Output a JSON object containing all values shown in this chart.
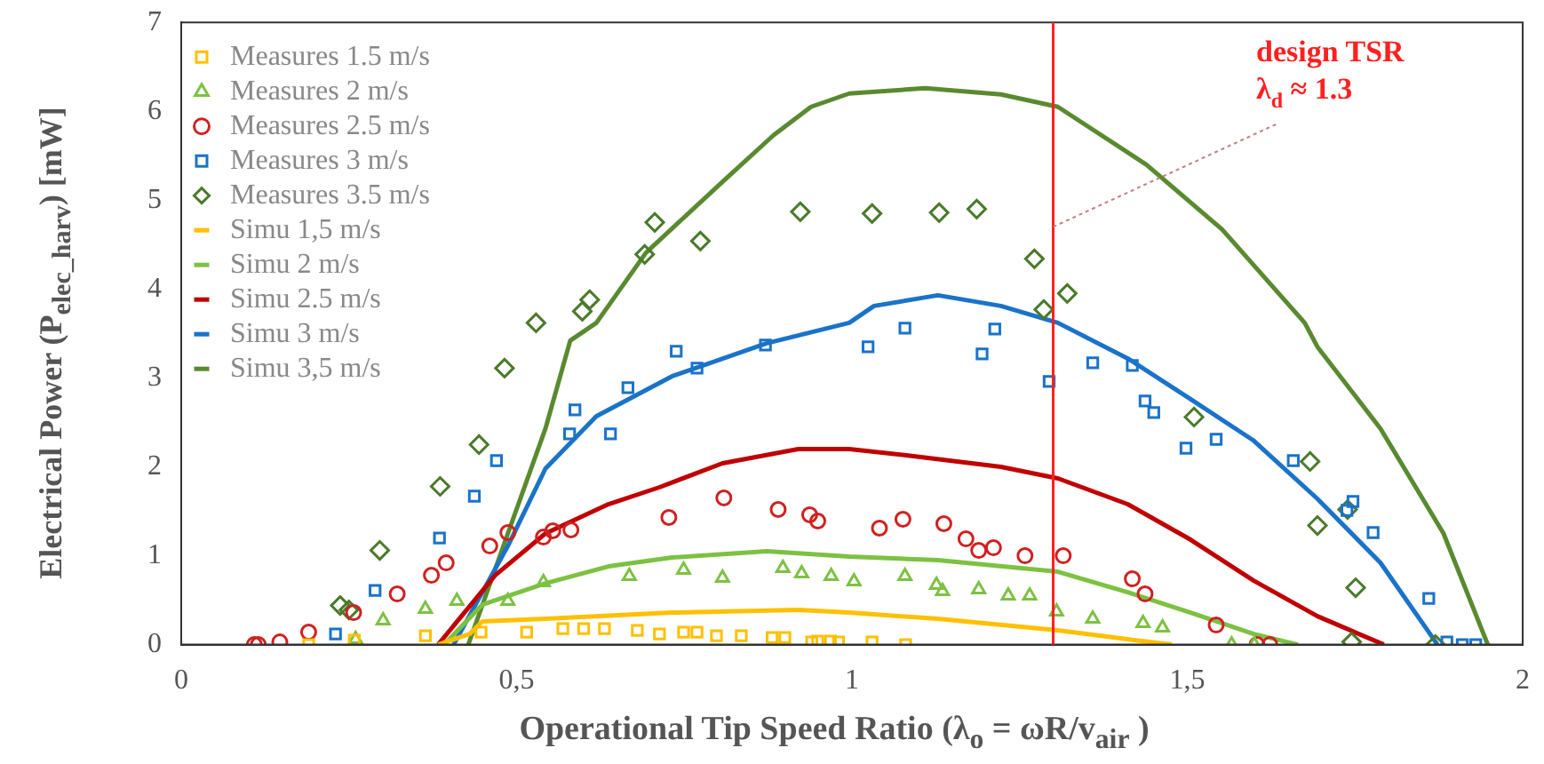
{
  "chart_data": {
    "type": "scatter",
    "xlabel": "Operational Tip Speed Ratio (λ$_{o}$ = ωR/v$_{air}$ )",
    "ylabel": "Electrical Power (P$_{elec_harv}$) [mW]",
    "xlim": [
      0,
      2
    ],
    "xticks": [
      0,
      {
        "value": 0.5,
        "label": "0,5"
      },
      1,
      {
        "value": 1.5,
        "label": "1,5"
      },
      2
    ],
    "ylim": [
      0,
      7
    ],
    "yticks": [
      0,
      1,
      2,
      3,
      4,
      5,
      6,
      7
    ],
    "grid": false,
    "legend": "top left",
    "ref_lines": [
      {
        "axis": "x",
        "value": 1.3,
        "color": "#ff2020"
      }
    ],
    "annotations": [
      {
        "text": "design TSR\nλ$_{d}$ ≈ 1.3",
        "x": 1.3,
        "y": 4.7
      }
    ],
    "series": [
      {
        "name": "Measures 1.5 m/s",
        "type": "scatter",
        "marker": "square",
        "color": "#ffc000",
        "x": [
          0.19,
          0.258,
          0.364,
          0.447,
          0.515,
          0.569,
          0.6,
          0.631,
          0.68,
          0.713,
          0.749,
          0.769,
          0.798,
          0.835,
          0.881,
          0.9,
          0.949,
          0.968,
          0.94,
          0.98,
          1.03,
          1.08
        ],
        "values": [
          0,
          0.05,
          0.1,
          0.14,
          0.14,
          0.18,
          0.18,
          0.18,
          0.16,
          0.12,
          0.14,
          0.14,
          0.1,
          0.1,
          0.08,
          0.08,
          0.04,
          0.04,
          0.03,
          0.03,
          0.03,
          0
        ]
      },
      {
        "name": "Measures 2 m/s",
        "type": "scatter",
        "marker": "triangle",
        "color": "#7dc142",
        "x": [
          0.26,
          0.301,
          0.364,
          0.411,
          0.487,
          0.54,
          0.668,
          0.749,
          0.807,
          0.897,
          0.925,
          0.969,
          1.003,
          1.079,
          1.126,
          1.135,
          1.189,
          1.233,
          1.265,
          1.305,
          1.359,
          1.434,
          1.463,
          1.566,
          1.6
        ],
        "values": [
          0.06,
          0.27,
          0.4,
          0.49,
          0.49,
          0.7,
          0.77,
          0.84,
          0.75,
          0.86,
          0.8,
          0.77,
          0.71,
          0.77,
          0.67,
          0.6,
          0.62,
          0.55,
          0.55,
          0.37,
          0.29,
          0.24,
          0.19,
          0,
          0
        ]
      },
      {
        "name": "Measures 2.5 m/s",
        "type": "scatter",
        "marker": "circle",
        "color": "#d02020",
        "x": [
          0.109,
          0.115,
          0.147,
          0.19,
          0.257,
          0.322,
          0.373,
          0.395,
          0.46,
          0.487,
          0.54,
          0.554,
          0.581,
          0.727,
          0.809,
          0.89,
          0.937,
          0.949,
          1.041,
          1.076,
          1.137,
          1.17,
          1.189,
          1.211,
          1.258,
          1.315,
          1.418,
          1.437,
          1.543,
          1.604,
          1.623
        ],
        "values": [
          0,
          0,
          0.03,
          0.14,
          0.36,
          0.57,
          0.78,
          0.92,
          1.11,
          1.26,
          1.21,
          1.28,
          1.29,
          1.43,
          1.65,
          1.52,
          1.46,
          1.39,
          1.31,
          1.41,
          1.36,
          1.19,
          1.06,
          1.09,
          1,
          1,
          0.74,
          0.57,
          0.22,
          0,
          0
        ]
      },
      {
        "name": "Measures 3 m/s",
        "type": "scatter",
        "marker": "square",
        "color": "#1a73c8",
        "x": [
          0.23,
          0.289,
          0.385,
          0.437,
          0.47,
          0.579,
          0.587,
          0.64,
          0.666,
          0.738,
          0.769,
          0.871,
          1.024,
          1.079,
          1.194,
          1.213,
          1.294,
          1.359,
          1.418,
          1.437,
          1.45,
          1.498,
          1.543,
          1.658,
          1.738,
          1.747,
          1.777,
          1.86,
          1.887,
          1.91,
          1.93
        ],
        "values": [
          0.12,
          0.61,
          1.2,
          1.67,
          2.07,
          2.37,
          2.64,
          2.37,
          2.89,
          3.3,
          3.11,
          3.37,
          3.35,
          3.56,
          3.27,
          3.55,
          2.96,
          3.17,
          3.14,
          2.74,
          2.61,
          2.21,
          2.31,
          2.07,
          1.51,
          1.61,
          1.26,
          0.52,
          0.03,
          0,
          0
        ]
      },
      {
        "name": "Measures 3.5 m/s",
        "type": "scatter",
        "marker": "diamond",
        "color": "#4a7a2a",
        "x": [
          0.237,
          0.25,
          0.296,
          0.386,
          0.444,
          0.482,
          0.529,
          0.598,
          0.609,
          0.691,
          0.706,
          0.774,
          0.923,
          1.03,
          1.13,
          1.186,
          1.272,
          1.286,
          1.321,
          1.51,
          1.683,
          1.694,
          1.739,
          1.751,
          1.745,
          1.87
        ],
        "values": [
          0.44,
          0.39,
          1.06,
          1.78,
          2.25,
          3.11,
          3.62,
          3.75,
          3.88,
          4.39,
          4.75,
          4.54,
          4.87,
          4.85,
          4.86,
          4.9,
          4.34,
          3.77,
          3.95,
          2.56,
          2.06,
          1.34,
          1.52,
          0.64,
          0.03,
          0
        ]
      },
      {
        "name": "Simu 1,5 m/s",
        "type": "line",
        "marker": "none",
        "color": "#ffc000",
        "x": [
          0.383,
          0.43,
          0.449,
          0.543,
          0.732,
          0.92,
          0.996,
          1.128,
          1.307,
          1.411,
          1.477
        ],
        "values": [
          0,
          0.12,
          0.26,
          0.29,
          0.36,
          0.39,
          0.36,
          0.29,
          0.16,
          0.06,
          0
        ]
      },
      {
        "name": "Simu 2 m/s",
        "type": "line",
        "marker": "none",
        "color": "#7dc142",
        "x": [
          0.392,
          0.449,
          0.543,
          0.637,
          0.732,
          0.873,
          0.996,
          1.128,
          1.307,
          1.411,
          1.505,
          1.599,
          1.665
        ],
        "values": [
          0,
          0.45,
          0.69,
          0.88,
          0.98,
          1.05,
          0.99,
          0.95,
          0.82,
          0.59,
          0.36,
          0.12,
          0
        ]
      },
      {
        "name": "Simu 2.5 m/s",
        "type": "line",
        "marker": "none",
        "color": "#c00000",
        "x": [
          0.383,
          0.468,
          0.543,
          0.637,
          0.713,
          0.807,
          0.92,
          0.996,
          1.081,
          1.222,
          1.307,
          1.411,
          1.505,
          1.599,
          1.694,
          1.793
        ],
        "values": [
          0,
          0.78,
          1.25,
          1.58,
          1.77,
          2.04,
          2.2,
          2.2,
          2.13,
          2,
          1.87,
          1.58,
          1.18,
          0.72,
          0.32,
          0
        ]
      },
      {
        "name": "Simu 3 m/s",
        "type": "line",
        "marker": "none",
        "color": "#1a73c8",
        "x": [
          0.406,
          0.487,
          0.543,
          0.619,
          0.732,
          0.873,
          0.996,
          1.033,
          1.128,
          1.222,
          1.307,
          1.411,
          1.505,
          1.598,
          1.694,
          1.788,
          1.873
        ],
        "values": [
          0,
          1.11,
          1.98,
          2.57,
          3.02,
          3.39,
          3.62,
          3.81,
          3.93,
          3.81,
          3.62,
          3.22,
          2.76,
          2.3,
          1.64,
          0.92,
          0
        ]
      },
      {
        "name": "Simu 3,5 m/s",
        "type": "line",
        "marker": "none",
        "color": "#5a8a30",
        "x": [
          0.428,
          0.487,
          0.543,
          0.58,
          0.619,
          0.693,
          0.806,
          0.883,
          0.939,
          0.996,
          1.109,
          1.222,
          1.307,
          1.439,
          1.552,
          1.675,
          1.694,
          1.788,
          1.882,
          1.948
        ],
        "values": [
          0,
          1.25,
          2.43,
          3.42,
          3.62,
          4.41,
          5.2,
          5.73,
          6.05,
          6.2,
          6.26,
          6.19,
          6.05,
          5.4,
          4.67,
          3.62,
          3.35,
          2.43,
          1.25,
          0
        ]
      }
    ]
  }
}
